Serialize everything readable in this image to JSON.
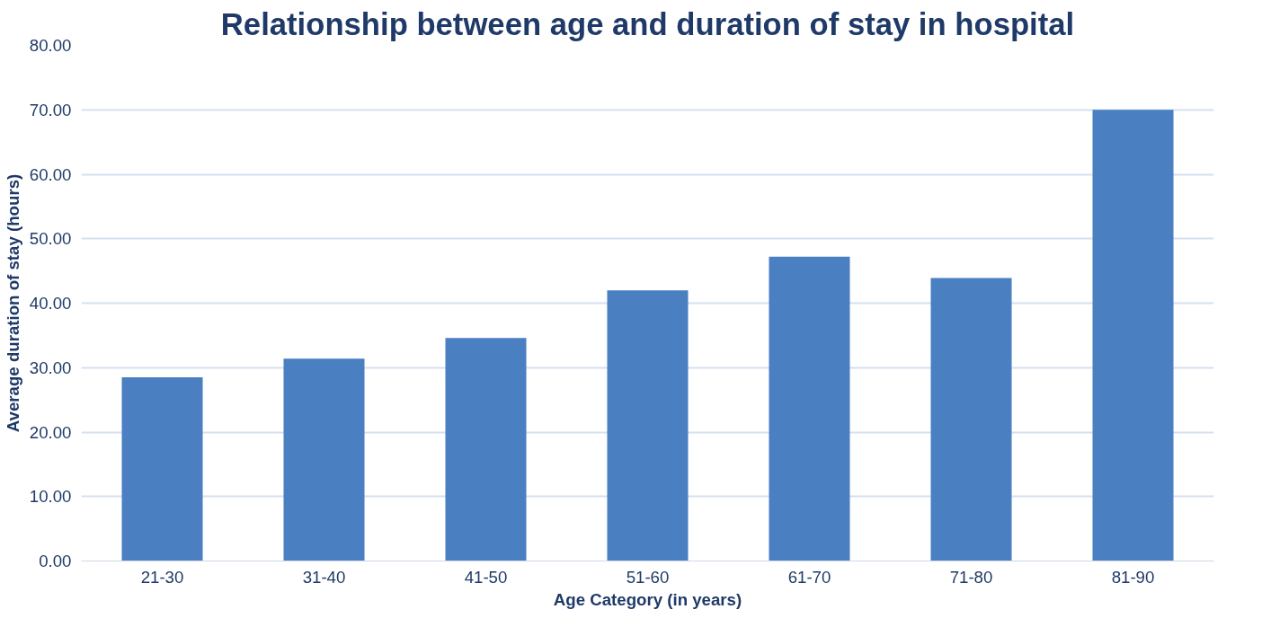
{
  "chart_data": {
    "type": "bar",
    "title": "Relationship between age and duration of stay in hospital",
    "xlabel": "Age Category (in years)",
    "ylabel": "Average duration of stay (hours)",
    "categories": [
      "21-30",
      "31-40",
      "41-50",
      "51-60",
      "61-70",
      "71-80",
      "81-90"
    ],
    "values": [
      28.5,
      31.4,
      34.6,
      42.0,
      47.2,
      43.9,
      70.0
    ],
    "color": "#4a7fc1",
    "ylim": [
      0,
      80
    ],
    "yticks": [
      {
        "value": 0,
        "label": "0.00"
      },
      {
        "value": 10,
        "label": "10.00"
      },
      {
        "value": 20,
        "label": "20.00"
      },
      {
        "value": 30,
        "label": "30.00"
      },
      {
        "value": 40,
        "label": "40.00"
      },
      {
        "value": 50,
        "label": "50.00"
      },
      {
        "value": 60,
        "label": "60.00"
      },
      {
        "value": 70,
        "label": "70.00"
      },
      {
        "value": 80,
        "label": "80.00"
      }
    ],
    "grid": "y"
  }
}
